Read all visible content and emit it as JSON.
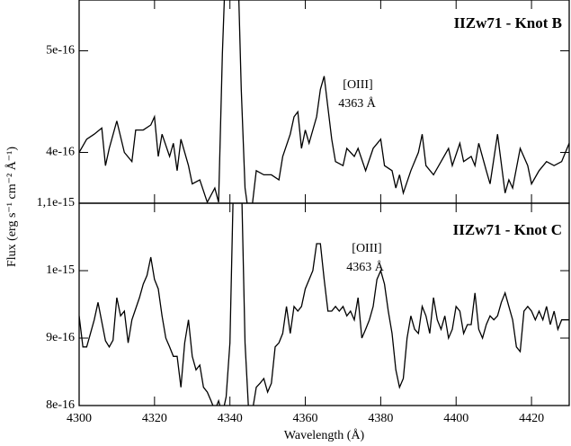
{
  "chart_data": [
    {
      "type": "line",
      "title": "IIZw71 - Knot B",
      "annotation": [
        "[OIII]",
        "4363 Å"
      ],
      "ylabel": "Flux (erg s⁻¹ cm⁻² Å⁻¹)",
      "color": "#000000",
      "xlim": [
        4300,
        4430
      ],
      "xticks": [
        4300,
        4320,
        4340,
        4360,
        4380,
        4400,
        4420
      ],
      "ylim": [
        3.5e-16,
        5.5e-16
      ],
      "yticks": [
        4e-16,
        5e-16
      ],
      "x": [
        4300,
        4302,
        4304,
        4306,
        4307,
        4308,
        4310,
        4312,
        4314,
        4315,
        4317,
        4319,
        4320,
        4321,
        4322,
        4324,
        4325,
        4326,
        4327,
        4329,
        4330,
        4332,
        4334,
        4336,
        4337,
        4338,
        4339,
        4342,
        4343,
        4344,
        4345,
        4346,
        4347,
        4349,
        4351,
        4353,
        4354,
        4356,
        4357,
        4358,
        4359,
        4360,
        4361,
        4363,
        4364,
        4365,
        4366,
        4367,
        4368,
        4370,
        4371,
        4373,
        4374,
        4376,
        4378,
        4380,
        4381,
        4383,
        4384,
        4385,
        4386,
        4388,
        4390,
        4391,
        4392,
        4394,
        4396,
        4398,
        4399,
        4401,
        4402,
        4404,
        4405,
        4406,
        4408,
        4409,
        4411,
        4413,
        4414,
        4415,
        4417,
        4419,
        4420,
        4422,
        4424,
        4426,
        4428,
        4430
      ],
      "values": [
        4e-16,
        4.13e-16,
        4.18e-16,
        4.24e-16,
        3.87e-16,
        4.04e-16,
        4.31e-16,
        4e-16,
        3.91e-16,
        4.22e-16,
        4.22e-16,
        4.27e-16,
        4.35e-16,
        3.96e-16,
        4.18e-16,
        3.96e-16,
        4.09e-16,
        3.82e-16,
        4.13e-16,
        3.87e-16,
        3.69e-16,
        3.73e-16,
        3.51e-16,
        3.65e-16,
        3.51e-16,
        4.97e-16,
        6e-16,
        6e-16,
        4.62e-16,
        3.65e-16,
        3.38e-16,
        3.5e-16,
        3.82e-16,
        3.78e-16,
        3.78e-16,
        3.73e-16,
        3.96e-16,
        4.18e-16,
        4.35e-16,
        4.4e-16,
        4.04e-16,
        4.22e-16,
        4.09e-16,
        4.35e-16,
        4.62e-16,
        4.75e-16,
        4.44e-16,
        4.13e-16,
        3.91e-16,
        3.87e-16,
        4.04e-16,
        3.96e-16,
        4.04e-16,
        3.82e-16,
        4.04e-16,
        4.13e-16,
        3.87e-16,
        3.82e-16,
        3.65e-16,
        3.78e-16,
        3.6e-16,
        3.82e-16,
        4e-16,
        4.18e-16,
        3.87e-16,
        3.78e-16,
        3.91e-16,
        4.04e-16,
        3.87e-16,
        4.09e-16,
        3.91e-16,
        3.96e-16,
        3.87e-16,
        4.09e-16,
        3.82e-16,
        3.69e-16,
        4.18e-16,
        3.6e-16,
        3.73e-16,
        3.65e-16,
        4.04e-16,
        3.87e-16,
        3.69e-16,
        3.82e-16,
        3.91e-16,
        3.87e-16,
        3.91e-16,
        4.09e-16
      ]
    },
    {
      "type": "line",
      "title": "IIZw71 - Knot C",
      "annotation": [
        "[OIII]",
        "4363 Å"
      ],
      "xlabel": "Wavelength (Å)",
      "color": "#000000",
      "xlim": [
        4300,
        4430
      ],
      "xticks": [
        4300,
        4320,
        4340,
        4360,
        4380,
        4400,
        4420
      ],
      "ylim": [
        8e-16,
        1.1e-15
      ],
      "yticks": [
        8e-16,
        9e-16,
        1e-15,
        {
          "value": 1.1e-15,
          "label": "1,1e-15"
        }
      ],
      "x": [
        4300,
        4301,
        4302,
        4303,
        4304,
        4305,
        4307,
        4308,
        4309,
        4310,
        4311,
        4312,
        4313,
        4314,
        4316,
        4317,
        4318,
        4319,
        4320,
        4321,
        4322,
        4323,
        4324,
        4325,
        4326,
        4327,
        4328,
        4329,
        4330,
        4331,
        4332,
        4333,
        4334,
        4335,
        4336,
        4337,
        4338,
        4339,
        4340,
        4341,
        4343,
        4344,
        4345,
        4346,
        4347,
        4348,
        4349,
        4350,
        4351,
        4352,
        4353,
        4354,
        4355,
        4356,
        4357,
        4358,
        4359,
        4360,
        4362,
        4363,
        4364,
        4365,
        4366,
        4367,
        4368,
        4369,
        4370,
        4371,
        4372,
        4373,
        4374,
        4375,
        4376,
        4377,
        4378,
        4379,
        4380,
        4381,
        4382,
        4383,
        4384,
        4385,
        4386,
        4387,
        4388,
        4389,
        4390,
        4391,
        4392,
        4393,
        4394,
        4395,
        4396,
        4397,
        4398,
        4399,
        4400,
        4401,
        4402,
        4403,
        4404,
        4405,
        4406,
        4407,
        4408,
        4409,
        4410,
        4411,
        4412,
        4413,
        4414,
        4415,
        4416,
        4417,
        4418,
        4419,
        4420,
        4421,
        4422,
        4423,
        4424,
        4425,
        4426,
        4427,
        4428,
        4429,
        4430
      ],
      "values": [
        9.33e-16,
        8.87e-16,
        8.87e-16,
        9.07e-16,
        9.27e-16,
        9.53e-16,
        8.96e-16,
        8.87e-16,
        8.97e-16,
        9.6e-16,
        9.33e-16,
        9.4e-16,
        8.93e-16,
        9.27e-16,
        9.6e-16,
        9.8e-16,
        9.93e-16,
        1.02e-15,
        9.87e-16,
        9.73e-16,
        9.33e-16,
        9e-16,
        8.87e-16,
        8.73e-16,
        8.73e-16,
        8.27e-16,
        8.93e-16,
        9.27e-16,
        8.73e-16,
        8.53e-16,
        8.6e-16,
        8.27e-16,
        8.2e-16,
        8.07e-16,
        7.93e-16,
        8.07e-16,
        7.87e-16,
        8.13e-16,
        8.93e-16,
        1.15e-15,
        1.15e-15,
        8.93e-16,
        7.87e-16,
        7.93e-16,
        8.27e-16,
        8.33e-16,
        8.4e-16,
        8.2e-16,
        8.33e-16,
        8.87e-16,
        8.93e-16,
        9.07e-16,
        9.47e-16,
        9.07e-16,
        9.47e-16,
        9.4e-16,
        9.47e-16,
        9.73e-16,
        1e-15,
        1.04e-15,
        1.04e-15,
        9.87e-16,
        9.4e-16,
        9.4e-16,
        9.47e-16,
        9.4e-16,
        9.47e-16,
        9.33e-16,
        9.4e-16,
        9.27e-16,
        9.6e-16,
        9e-16,
        9.13e-16,
        9.27e-16,
        9.47e-16,
        9.87e-16,
        1e-15,
        9.8e-16,
        9.4e-16,
        9.07e-16,
        8.53e-16,
        8.27e-16,
        8.4e-16,
        9e-16,
        9.33e-16,
        9.13e-16,
        9.07e-16,
        9.47e-16,
        9.33e-16,
        9.07e-16,
        9.6e-16,
        9.27e-16,
        9.13e-16,
        9.33e-16,
        9e-16,
        9.13e-16,
        9.47e-16,
        9.4e-16,
        9.07e-16,
        9.2e-16,
        9.2e-16,
        9.67e-16,
        9.13e-16,
        9e-16,
        9.2e-16,
        9.33e-16,
        9.27e-16,
        9.33e-16,
        9.53e-16,
        9.67e-16,
        9.47e-16,
        9.27e-16,
        8.87e-16,
        8.8e-16,
        9.4e-16,
        9.47e-16,
        9.4e-16,
        9.27e-16,
        9.4e-16,
        9.27e-16,
        9.47e-16,
        9.2e-16,
        9.4e-16,
        9.13e-16,
        9.27e-16,
        9.27e-16,
        9.27e-16
      ]
    }
  ]
}
